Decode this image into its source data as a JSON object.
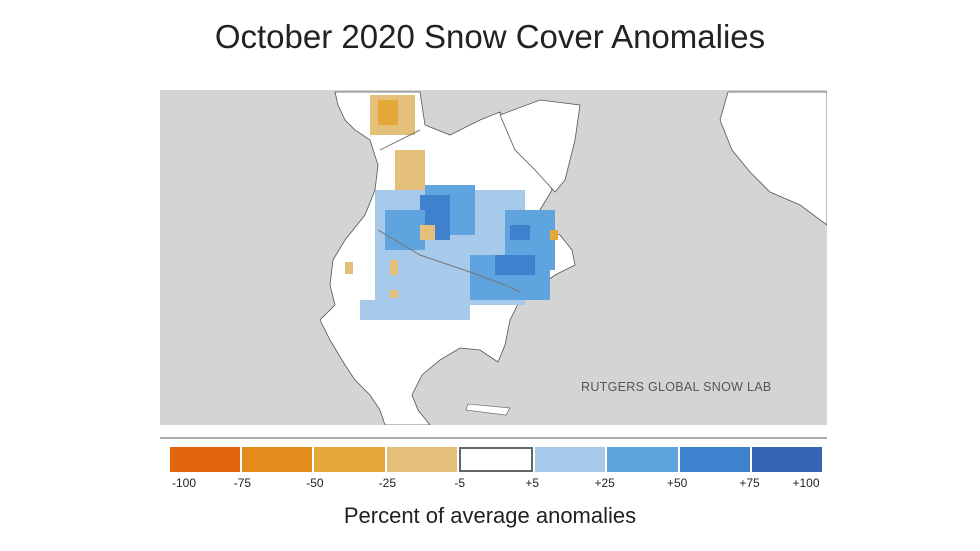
{
  "title": "October 2020 Snow Cover Anomalies",
  "map": {
    "credit": "RUTGERS GLOBAL SNOW LAB",
    "colors": {
      "ocean": "#d4d4d4",
      "land": "#ffffff"
    }
  },
  "legend": {
    "caption": "Percent of average anomalies",
    "bins": [
      {
        "range": "-100 to -75",
        "color": "#e2650f"
      },
      {
        "range": "-75 to -50",
        "color": "#e38b1c"
      },
      {
        "range": "-50 to -25",
        "color": "#e4a838"
      },
      {
        "range": "-25 to -5",
        "color": "#e4c07a"
      },
      {
        "range": "-5 to +5",
        "color": "#ffffff"
      },
      {
        "range": "+5 to +25",
        "color": "#a7c9ea"
      },
      {
        "range": "+25 to +50",
        "color": "#5fa4de"
      },
      {
        "range": "+50 to +75",
        "color": "#3f81cc"
      },
      {
        "range": "+75 to +100",
        "color": "#3764b5"
      }
    ],
    "tick_labels": [
      "-100",
      "-75",
      "-50",
      "-25",
      "-5",
      "+5",
      "+25",
      "+50",
      "+75",
      "+100"
    ]
  }
}
